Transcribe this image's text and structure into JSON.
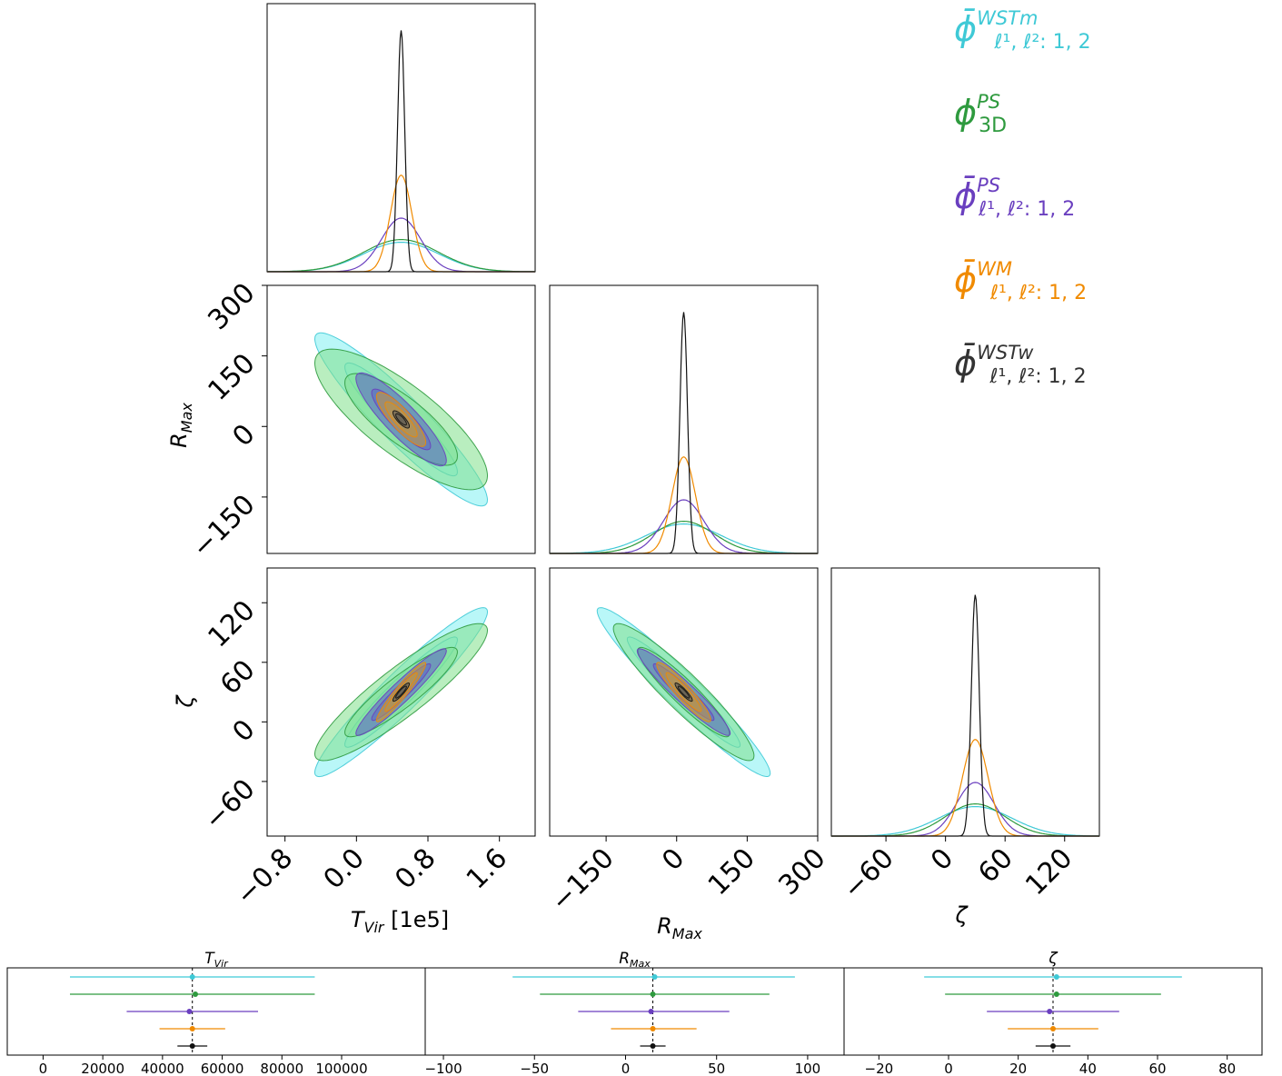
{
  "colors": {
    "cyan": "#3fc9d6",
    "cyan_fill": "#7ff1f3",
    "green": "#2e9a3e",
    "green_fill": "#7fe08a",
    "purple": "#6a3fbf",
    "purple_fill": "#5b5cc8",
    "orange": "#f08a00",
    "orange_fill": "#c89a3a",
    "black": "#111111"
  },
  "legend": [
    {
      "key": "wst_m",
      "symbol": "ϕ̄",
      "sup": "WSTm",
      "sub": "ℓ¹, ℓ²: 1, 2",
      "color": "#3fc9d6"
    },
    {
      "key": "ps3d",
      "symbol": "ϕ",
      "sup": "PS",
      "sub": "3D",
      "color": "#2e9a3e"
    },
    {
      "key": "ps",
      "symbol": "ϕ̄",
      "sup": "PS",
      "sub": "ℓ¹, ℓ²: 1, 2",
      "color": "#6a3fbf"
    },
    {
      "key": "wm",
      "symbol": "ϕ̄",
      "sup": "WM",
      "sub": "ℓ¹, ℓ²: 1, 2",
      "color": "#f08a00"
    },
    {
      "key": "wst_w",
      "symbol": "ϕ̄",
      "sup": "WSTw",
      "sub": "ℓ¹, ℓ²: 1, 2",
      "color": "#333333"
    }
  ],
  "chart_data": [
    {
      "type": "corner",
      "parameters": [
        "T_Vir",
        "R_Max",
        "zeta"
      ],
      "axis_labels": {
        "T_Vir": "T_Vir [1e5]",
        "R_Max": "R_Max",
        "zeta": "ζ"
      },
      "ticks": {
        "T_Vir": [
          "−0.8",
          "0.0",
          "0.8",
          "1.6"
        ],
        "R_Max": [
          "−150",
          "0",
          "150",
          "300"
        ],
        "R_Max_y": [
          "−150",
          "0",
          "150",
          "300"
        ],
        "zeta": [
          "−60",
          "0",
          "60",
          "120"
        ]
      },
      "ranges": {
        "T_Vir": [
          -1.0,
          2.0
        ],
        "R_Max": [
          -270,
          300
        ],
        "zeta": [
          -115,
          155
        ]
      },
      "series": [
        {
          "key": "wst_m",
          "mean": {
            "T_Vir": 0.5,
            "R_Max": 15,
            "zeta": 30
          },
          "sigma": {
            "T_Vir": 0.42,
            "R_Max": 80,
            "zeta": 37
          },
          "corr": {
            "T_Vir_R_Max": -0.93,
            "T_Vir_zeta": 0.95,
            "R_Max_zeta": -0.96
          }
        },
        {
          "key": "ps3d",
          "mean": {
            "T_Vir": 0.5,
            "R_Max": 15,
            "zeta": 30
          },
          "sigma": {
            "T_Vir": 0.42,
            "R_Max": 65,
            "zeta": 30
          },
          "corr": {
            "T_Vir_R_Max": -0.8,
            "T_Vir_zeta": 0.9,
            "R_Max_zeta": -0.93
          }
        },
        {
          "key": "ps",
          "mean": {
            "T_Vir": 0.5,
            "R_Max": 15,
            "zeta": 30
          },
          "sigma": {
            "T_Vir": 0.22,
            "R_Max": 43,
            "zeta": 19
          },
          "corr": {
            "T_Vir_R_Max": -0.88,
            "T_Vir_zeta": 0.95,
            "R_Max_zeta": -0.95
          }
        },
        {
          "key": "wm",
          "mean": {
            "T_Vir": 0.5,
            "R_Max": 15,
            "zeta": 30
          },
          "sigma": {
            "T_Vir": 0.12,
            "R_Max": 25,
            "zeta": 13
          },
          "corr": {
            "T_Vir_R_Max": -0.85,
            "T_Vir_zeta": 0.95,
            "R_Max_zeta": -0.93
          }
        },
        {
          "key": "wst_w",
          "mean": {
            "T_Vir": 0.5,
            "R_Max": 15,
            "zeta": 30
          },
          "sigma": {
            "T_Vir": 0.04,
            "R_Max": 8,
            "zeta": 4
          },
          "corr": {
            "T_Vir_R_Max": -0.8,
            "T_Vir_zeta": 0.9,
            "R_Max_zeta": -0.9
          }
        }
      ]
    },
    {
      "type": "errorbar",
      "panels": [
        {
          "title": "T_Vir",
          "xlim": [
            -12000,
            128000
          ],
          "ticks": [
            0,
            20000,
            40000,
            60000,
            80000,
            100000
          ],
          "truth": 50000,
          "series": [
            {
              "key": "wst_m",
              "center": 50000,
              "lo": 9000,
              "hi": 91000
            },
            {
              "key": "ps3d",
              "center": 51000,
              "lo": 9000,
              "hi": 91000
            },
            {
              "key": "ps",
              "center": 49000,
              "lo": 28000,
              "hi": 72000
            },
            {
              "key": "wm",
              "center": 50000,
              "lo": 39000,
              "hi": 61000
            },
            {
              "key": "wst_w",
              "center": 50000,
              "lo": 45000,
              "hi": 55000
            }
          ]
        },
        {
          "title": "R_Max",
          "xlim": [
            -110,
            120
          ],
          "ticks": [
            -100,
            -50,
            0,
            50,
            100
          ],
          "truth": 15,
          "series": [
            {
              "key": "wst_m",
              "center": 16,
              "lo": -62,
              "hi": 93
            },
            {
              "key": "ps3d",
              "center": 15,
              "lo": -47,
              "hi": 79
            },
            {
              "key": "ps",
              "center": 14,
              "lo": -26,
              "hi": 57
            },
            {
              "key": "wm",
              "center": 15,
              "lo": -8,
              "hi": 39
            },
            {
              "key": "wst_w",
              "center": 15,
              "lo": 8,
              "hi": 22
            }
          ]
        },
        {
          "title": "ζ",
          "xlim": [
            -30,
            90
          ],
          "ticks": [
            -20,
            0,
            20,
            40,
            60,
            80
          ],
          "truth": 30,
          "series": [
            {
              "key": "wst_m",
              "center": 31,
              "lo": -7,
              "hi": 67
            },
            {
              "key": "ps3d",
              "center": 31,
              "lo": -1,
              "hi": 61
            },
            {
              "key": "ps",
              "center": 29,
              "lo": 11,
              "hi": 49
            },
            {
              "key": "wm",
              "center": 30,
              "lo": 17,
              "hi": 43
            },
            {
              "key": "wst_w",
              "center": 30,
              "lo": 25,
              "hi": 35
            }
          ]
        }
      ]
    }
  ]
}
